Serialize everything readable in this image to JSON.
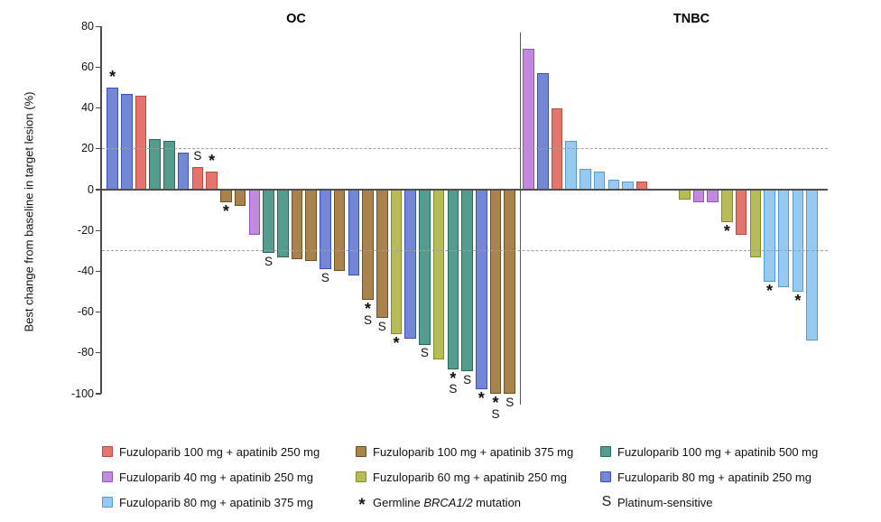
{
  "chart_data": {
    "type": "bar",
    "subtype": "waterfall",
    "ylabel": "Best change from baseline in target lesion (%)",
    "ylim": [
      -100,
      80
    ],
    "yticks": [
      80,
      60,
      40,
      20,
      0,
      -20,
      -40,
      -60,
      -80,
      -100
    ],
    "reference_lines": [
      20,
      -30
    ],
    "grid": false,
    "legend_position": "bottom",
    "palette": {
      "fz100_ap250": {
        "fill": "#E4756C",
        "stroke": "#BA4A40"
      },
      "fz100_ap375": {
        "fill": "#A9824E",
        "stroke": "#6F5222"
      },
      "fz100_ap500": {
        "fill": "#549C8E",
        "stroke": "#25695D"
      },
      "fz40_ap250": {
        "fill": "#C289DE",
        "stroke": "#9351BE"
      },
      "fz60_ap250": {
        "fill": "#B7BC59",
        "stroke": "#818E23"
      },
      "fz80_ap250": {
        "fill": "#7487D4",
        "stroke": "#3A50BE"
      },
      "fz80_ap375": {
        "fill": "#97C9F1",
        "stroke": "#519CD2"
      }
    },
    "marker_meanings": {
      "*": "Germline BRCA1/2 mutation",
      "S": "Platinum-sensitive"
    },
    "groups": [
      {
        "title": "OC",
        "bars": [
          {
            "value": 50,
            "color": "fz80_ap250",
            "marker": "*"
          },
          {
            "value": 47,
            "color": "fz80_ap250"
          },
          {
            "value": 46,
            "color": "fz100_ap250"
          },
          {
            "value": 25,
            "color": "fz100_ap500"
          },
          {
            "value": 24,
            "color": "fz100_ap500"
          },
          {
            "value": 18,
            "color": "fz80_ap250"
          },
          {
            "value": 11,
            "color": "fz100_ap250",
            "marker": "S"
          },
          {
            "value": 9,
            "color": "fz100_ap250",
            "marker": "*"
          },
          {
            "value": -6,
            "color": "fz100_ap375",
            "marker": "*"
          },
          {
            "value": -8,
            "color": "fz100_ap375"
          },
          {
            "value": -22,
            "color": "fz40_ap250"
          },
          {
            "value": -31,
            "color": "fz100_ap500",
            "marker": "S"
          },
          {
            "value": -33,
            "color": "fz100_ap500"
          },
          {
            "value": -34,
            "color": "fz100_ap375"
          },
          {
            "value": -35,
            "color": "fz100_ap375"
          },
          {
            "value": -39,
            "color": "fz80_ap250",
            "marker": "S"
          },
          {
            "value": -40,
            "color": "fz100_ap375"
          },
          {
            "value": -42,
            "color": "fz80_ap250"
          },
          {
            "value": -54,
            "color": "fz100_ap375",
            "marker": "*S"
          },
          {
            "value": -63,
            "color": "fz100_ap375",
            "marker": "S"
          },
          {
            "value": -71,
            "color": "fz60_ap250",
            "marker": "*"
          },
          {
            "value": -73,
            "color": "fz80_ap250"
          },
          {
            "value": -76,
            "color": "fz100_ap500",
            "marker": "S"
          },
          {
            "value": -83,
            "color": "fz60_ap250"
          },
          {
            "value": -88,
            "color": "fz100_ap500",
            "marker": "*S"
          },
          {
            "value": -89,
            "color": "fz100_ap500",
            "marker": "S"
          },
          {
            "value": -98,
            "color": "fz80_ap250",
            "marker": "*"
          },
          {
            "value": -100,
            "color": "fz100_ap375",
            "marker": "*S"
          },
          {
            "value": -100,
            "color": "fz100_ap375",
            "marker": "S"
          }
        ]
      },
      {
        "title": "TNBC",
        "bars": [
          {
            "value": 69,
            "color": "fz40_ap250"
          },
          {
            "value": 57,
            "color": "fz80_ap250"
          },
          {
            "value": 40,
            "color": "fz100_ap250"
          },
          {
            "value": 24,
            "color": "fz80_ap375"
          },
          {
            "value": 10,
            "color": "fz80_ap375"
          },
          {
            "value": 9,
            "color": "fz80_ap375"
          },
          {
            "value": 5,
            "color": "fz80_ap375"
          },
          {
            "value": 4,
            "color": "fz80_ap375"
          },
          {
            "value": 4,
            "color": "fz100_ap250"
          },
          {
            "value": 0,
            "color": null
          },
          {
            "value": 0,
            "color": null
          },
          {
            "value": -5,
            "color": "fz60_ap250"
          },
          {
            "value": -6,
            "color": "fz40_ap250"
          },
          {
            "value": -6,
            "color": "fz40_ap250"
          },
          {
            "value": -16,
            "color": "fz60_ap250",
            "marker": "*"
          },
          {
            "value": -22,
            "color": "fz100_ap250"
          },
          {
            "value": -33,
            "color": "fz60_ap250"
          },
          {
            "value": -45,
            "color": "fz80_ap375",
            "marker": "*"
          },
          {
            "value": -48,
            "color": "fz80_ap375"
          },
          {
            "value": -50,
            "color": "fz80_ap375",
            "marker": "*"
          },
          {
            "value": -74,
            "color": "fz80_ap375"
          }
        ]
      }
    ]
  },
  "legend": {
    "items": [
      {
        "color": "fz100_ap250",
        "label": "Fuzuloparib 100 mg + apatinib 250 mg"
      },
      {
        "color": "fz100_ap375",
        "label": "Fuzuloparib 100 mg + apatinib 375 mg"
      },
      {
        "color": "fz100_ap500",
        "label": "Fuzuloparib 100 mg + apatinib 500 mg"
      },
      {
        "color": "fz40_ap250",
        "label": "Fuzuloparib 40 mg + apatinib 250 mg"
      },
      {
        "color": "fz60_ap250",
        "label": "Fuzuloparib 60 mg + apatinib 250 mg"
      },
      {
        "color": "fz80_ap250",
        "label": "Fuzuloparib 80 mg + apatinib 250 mg"
      },
      {
        "color": "fz80_ap375",
        "label": "Fuzuloparib 80 mg + apatinib 375 mg"
      },
      {
        "symbol": "*",
        "label_parts": [
          {
            "text": "Germline "
          },
          {
            "text": "BRCA1/2",
            "italic": true
          },
          {
            "text": " mutation"
          }
        ]
      },
      {
        "symbol": "S",
        "label": "Platinum-sensitive"
      }
    ]
  }
}
